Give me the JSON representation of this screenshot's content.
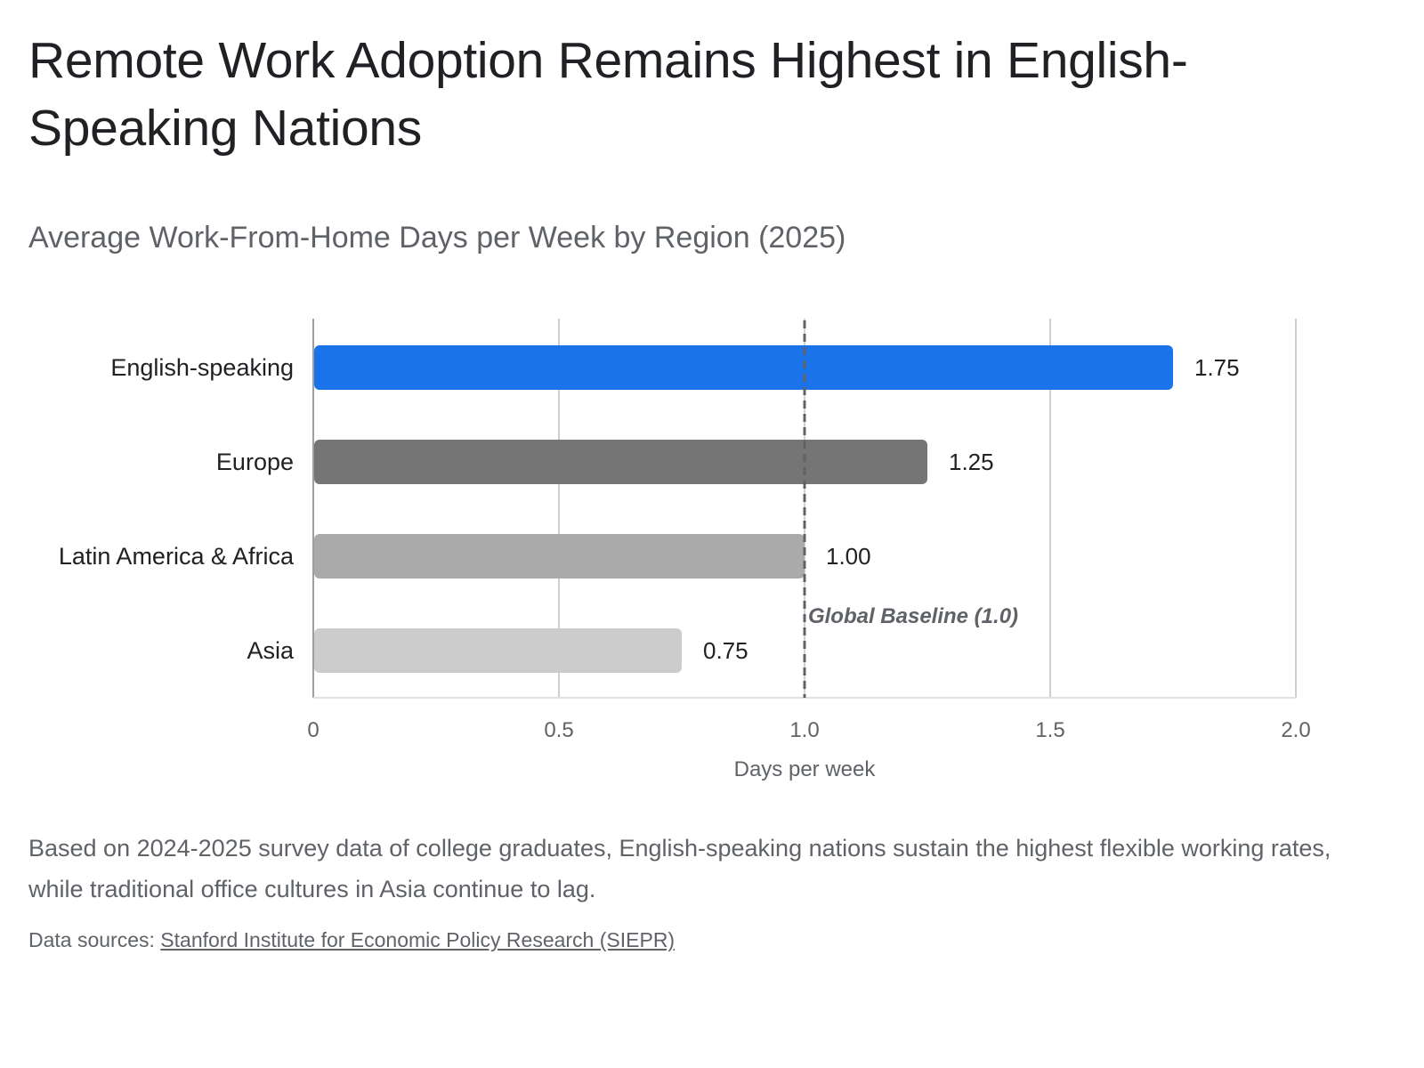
{
  "page": {
    "title": "Remote Work Adoption Remains Highest in English-Speaking Nations",
    "subtitle": "Average Work-From-Home Days per Week by Region (2025)",
    "caption": "Based on 2024-2025 survey data of college graduates, English-speaking nations sustain the highest flexible working rates, while traditional office cultures in Asia continue to lag.",
    "sources_prefix": "Data sources: ",
    "sources_link": "Stanford Institute for Economic Policy Research (SIEPR)"
  },
  "chart_data": {
    "type": "bar",
    "orientation": "horizontal",
    "categories": [
      "English-speaking",
      "Europe",
      "Latin America & Africa",
      "Asia"
    ],
    "values": [
      1.75,
      1.25,
      1.0,
      0.75
    ],
    "value_labels": [
      "1.75",
      "1.25",
      "1.00",
      "0.75"
    ],
    "colors": [
      "#1a73e8",
      "#757575",
      "#aaaaaa",
      "#cccccc"
    ],
    "xlabel": "Days per week",
    "xlim": [
      0,
      2.0
    ],
    "xticks": [
      0,
      0.5,
      1.0,
      1.5,
      2.0
    ],
    "xtick_labels": [
      "0",
      "0.5",
      "1.0",
      "1.5",
      "2.0"
    ],
    "grid": true,
    "reference_line": {
      "value": 1.0,
      "label": "Global Baseline (1.0)",
      "style": "dashed",
      "color": "#5f6368"
    }
  }
}
